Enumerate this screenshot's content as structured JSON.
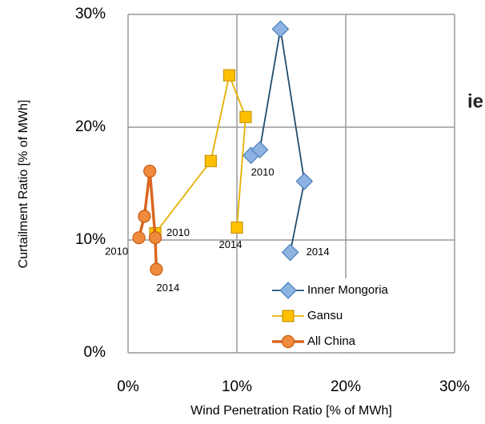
{
  "chart_data": {
    "type": "line",
    "xlabel": "Wind Penetration Ratio [% of MWh]",
    "ylabel": "Curtailment Ratio [% of MWh]",
    "xlim": [
      0,
      30
    ],
    "ylim": [
      0,
      30
    ],
    "xticks": [
      {
        "value": 0,
        "label": "0%"
      },
      {
        "value": 10,
        "label": "10%"
      },
      {
        "value": 20,
        "label": "20%"
      },
      {
        "value": 30,
        "label": "30%"
      }
    ],
    "yticks": [
      {
        "value": 0,
        "label": "0%"
      },
      {
        "value": 10,
        "label": "10%"
      },
      {
        "value": 20,
        "label": "20%"
      },
      {
        "value": 30,
        "label": "30%"
      }
    ],
    "grid": true,
    "legend": "lower right",
    "series": [
      {
        "name": "Inner Mongoria",
        "color": "#1f4e6e",
        "marker_color": "#8db3e2",
        "marker_edge": "#4a7ebb",
        "marker": "diamond",
        "x": [
          11.3,
          12.1,
          14.0,
          16.2,
          14.9
        ],
        "values": [
          17.5,
          18.0,
          28.7,
          15.2,
          8.9
        ]
      },
      {
        "name": "Gansu",
        "color": "#e6b000",
        "marker_color": "#ffc000",
        "marker_edge": "#c89600",
        "marker": "square",
        "x": [
          2.5,
          7.6,
          9.3,
          10.8,
          10.0
        ],
        "values": [
          10.6,
          17.0,
          24.6,
          20.9,
          11.1
        ]
      },
      {
        "name": "All China",
        "color": "#d9661f",
        "marker_color": "#f08a3c",
        "marker_edge": "#c55a11",
        "marker": "circle",
        "x": [
          1.0,
          1.5,
          2.0,
          2.5,
          2.6
        ],
        "values": [
          10.2,
          12.1,
          16.1,
          10.2,
          7.4
        ]
      }
    ],
    "annotations": [
      {
        "text": "2010",
        "series": 0,
        "point": 0
      },
      {
        "text": "2014",
        "series": 0,
        "point": 4
      },
      {
        "text": "2010",
        "series": 1,
        "point": 0
      },
      {
        "text": "2014",
        "series": 1,
        "point": 4
      },
      {
        "text": "2010",
        "series": 2,
        "point": 0
      },
      {
        "text": "2014",
        "series": 2,
        "point": 4
      }
    ],
    "clipped_text": "ie"
  }
}
